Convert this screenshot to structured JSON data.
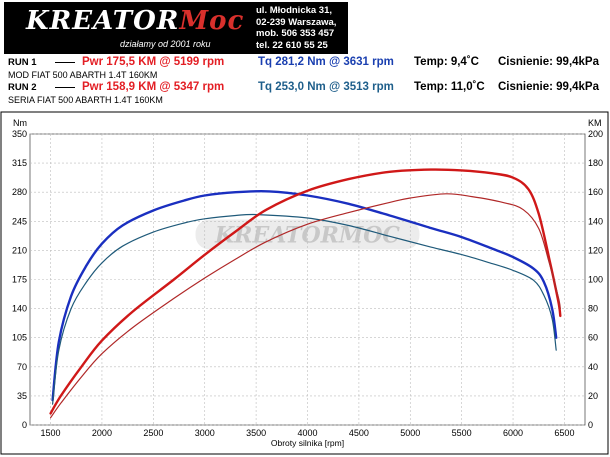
{
  "header": {
    "logo_text": "KREATOR",
    "logo_accent": "Moc",
    "tagline": "działamy od 2001 roku",
    "address": [
      "ul. Młodnicka 31,",
      "02-239  Warszawa,",
      "mob.  506 353 457",
      "tel.  22 610 55 25"
    ]
  },
  "runs": [
    {
      "label": "RUN 1",
      "pwr": "Pwr  175,5 KM @ 5199 rpm",
      "tq": "Tq 281,2 Nm @ 3631 rpm",
      "temp": "Temp: 9,4˚C",
      "pressure": "Cisnienie: 99,4kPa",
      "car": "MOD FIAT 500 ABARTH 1.4T 160KM",
      "tq_color": "#1a3fb0"
    },
    {
      "label": "RUN 2",
      "pwr": "Pwr  158,9 KM @ 5347 rpm",
      "tq": "Tq 253,0 Nm @ 3513 rpm",
      "temp": "Temp: 11,0˚C",
      "pressure": "Cisnienie: 99,4kPa",
      "car": "SERIA  FIAT 500 ABARTH 1.4T 160KM",
      "tq_color": "#1f5f8b"
    }
  ],
  "chart_data": {
    "type": "line",
    "xlabel": "Obroty silnika [rpm]",
    "ylabel_left": "Nm",
    "ylabel_right": "KM",
    "xlim": [
      1300,
      6700
    ],
    "ylim_left": [
      0,
      350
    ],
    "ylim_right": [
      0,
      200
    ],
    "x_ticks": [
      1500,
      2000,
      2500,
      3000,
      3500,
      4000,
      4500,
      5000,
      5500,
      6000,
      6500
    ],
    "y_ticks_left": [
      0,
      35,
      70,
      105,
      140,
      175,
      210,
      245,
      280,
      315,
      350
    ],
    "y_ticks_right": [
      0,
      20,
      40,
      60,
      80,
      100,
      120,
      140,
      160,
      180,
      200
    ],
    "grid": true,
    "watermark": "KREATORMOC",
    "series": [
      {
        "name": "RUN 1",
        "axis": "left",
        "color": "#1a2fc0",
        "width": 2.4,
        "points": [
          [
            1520,
            30
          ],
          [
            1580,
            100
          ],
          [
            1700,
            155
          ],
          [
            1850,
            192
          ],
          [
            2000,
            218
          ],
          [
            2200,
            240
          ],
          [
            2500,
            258
          ],
          [
            2800,
            270
          ],
          [
            3000,
            276
          ],
          [
            3300,
            280
          ],
          [
            3631,
            281
          ],
          [
            4000,
            276
          ],
          [
            4400,
            266
          ],
          [
            4800,
            252
          ],
          [
            5200,
            237
          ],
          [
            5500,
            226
          ],
          [
            5800,
            212
          ],
          [
            6000,
            202
          ],
          [
            6200,
            188
          ],
          [
            6300,
            172
          ],
          [
            6380,
            140
          ],
          [
            6420,
            105
          ]
        ]
      },
      {
        "name": "RUN 2",
        "axis": "left",
        "color": "#1f5a7a",
        "width": 1.2,
        "points": [
          [
            1520,
            25
          ],
          [
            1580,
            90
          ],
          [
            1700,
            140
          ],
          [
            1850,
            172
          ],
          [
            2000,
            195
          ],
          [
            2200,
            215
          ],
          [
            2500,
            232
          ],
          [
            2800,
            243
          ],
          [
            3000,
            248
          ],
          [
            3300,
            252
          ],
          [
            3513,
            253
          ],
          [
            4000,
            249
          ],
          [
            4400,
            240
          ],
          [
            4800,
            227
          ],
          [
            5200,
            214
          ],
          [
            5500,
            205
          ],
          [
            5800,
            194
          ],
          [
            6000,
            186
          ],
          [
            6200,
            174
          ],
          [
            6300,
            156
          ],
          [
            6380,
            128
          ],
          [
            6420,
            90
          ]
        ]
      },
      {
        "name": "RUN 1",
        "axis": "right",
        "color": "#d01818",
        "width": 2.4,
        "points": [
          [
            1500,
            8
          ],
          [
            1600,
            20
          ],
          [
            1800,
            40
          ],
          [
            2000,
            58
          ],
          [
            2300,
            78
          ],
          [
            2700,
            100
          ],
          [
            3000,
            117
          ],
          [
            3300,
            133
          ],
          [
            3600,
            148
          ],
          [
            4000,
            161
          ],
          [
            4400,
            169
          ],
          [
            4800,
            174
          ],
          [
            5199,
            175.5
          ],
          [
            5500,
            175
          ],
          [
            5800,
            173
          ],
          [
            6000,
            170
          ],
          [
            6150,
            162
          ],
          [
            6250,
            145
          ],
          [
            6350,
            115
          ],
          [
            6440,
            85
          ],
          [
            6460,
            75
          ]
        ]
      },
      {
        "name": "RUN 2",
        "axis": "right",
        "color": "#b02828",
        "width": 1.2,
        "points": [
          [
            1500,
            5
          ],
          [
            1600,
            15
          ],
          [
            1800,
            33
          ],
          [
            2000,
            49
          ],
          [
            2300,
            67
          ],
          [
            2700,
            87
          ],
          [
            3000,
            101
          ],
          [
            3300,
            114
          ],
          [
            3600,
            126
          ],
          [
            4000,
            138
          ],
          [
            4400,
            146
          ],
          [
            4800,
            153
          ],
          [
            5000,
            156
          ],
          [
            5347,
            158.9
          ],
          [
            5600,
            157
          ],
          [
            5900,
            153
          ],
          [
            6100,
            148
          ],
          [
            6250,
            135
          ],
          [
            6350,
            112
          ],
          [
            6440,
            88
          ],
          [
            6460,
            80
          ]
        ]
      }
    ]
  }
}
